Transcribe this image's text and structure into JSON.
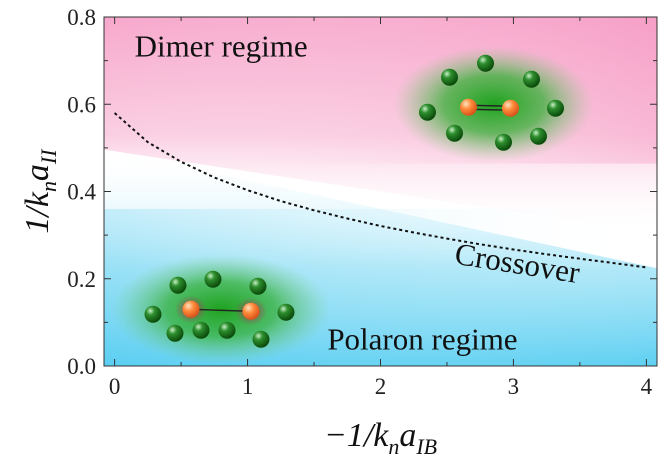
{
  "chart_data": {
    "type": "line",
    "title": "",
    "xlabel": {
      "prefix": "−1/k",
      "sub1": "n",
      "mid": "a",
      "sub2": "IB"
    },
    "ylabel": {
      "prefix": "1/k",
      "sub1": "n",
      "mid": "a",
      "sub2": "II"
    },
    "xlim": [
      -0.08,
      4.08
    ],
    "ylim": [
      0.0,
      0.8
    ],
    "x_ticks": [
      "0",
      "1",
      "2",
      "3",
      "4"
    ],
    "x_tick_values": [
      0,
      1,
      2,
      3,
      4
    ],
    "y_ticks": [
      "0.0",
      "0.2",
      "0.4",
      "0.6",
      "0.8"
    ],
    "y_tick_values": [
      0.0,
      0.2,
      0.4,
      0.6,
      0.8
    ],
    "grid": false,
    "series": [
      {
        "style": "dotted",
        "x": [
          0.0,
          0.25,
          0.5,
          0.75,
          1.0,
          1.25,
          1.5,
          1.75,
          2.0,
          2.25,
          2.5,
          2.75,
          3.0,
          3.25,
          3.5,
          3.75,
          4.0
        ],
        "y": [
          0.58,
          0.513,
          0.468,
          0.432,
          0.403,
          0.378,
          0.357,
          0.338,
          0.321,
          0.306,
          0.292,
          0.279,
          0.267,
          0.256,
          0.246,
          0.236,
          0.226
        ]
      }
    ],
    "annotations": [
      {
        "text": "Dimer regime",
        "x": 0.15,
        "y": 0.71
      },
      {
        "text": "Crossover",
        "x": 2.55,
        "y": 0.235
      },
      {
        "text": "Polaron regime",
        "x": 1.6,
        "y": 0.038
      }
    ],
    "background": {
      "top_color": "#f7a8cc",
      "bottom_color": "#5fd0f2",
      "middle_color": "#ffffff"
    },
    "insets": [
      {
        "name": "dimer-inset",
        "x": 2.85,
        "y": 0.6,
        "bond": "double"
      },
      {
        "name": "polaron-inset",
        "x": 0.8,
        "y": 0.13,
        "bond": "single"
      }
    ]
  }
}
